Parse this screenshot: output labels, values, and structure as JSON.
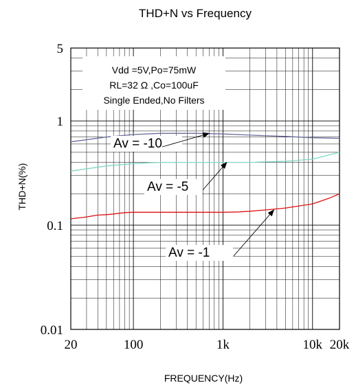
{
  "chart_data": {
    "type": "line",
    "title": "THD+N vs Frequency",
    "xlabel": "FREQUENCY(Hz)",
    "ylabel": "THD+N(%)",
    "x_scale": "log",
    "y_scale": "log",
    "xlim": [
      20,
      20000
    ],
    "ylim": [
      0.01,
      5
    ],
    "x_ticks": [
      {
        "value": 20,
        "label": "20"
      },
      {
        "value": 100,
        "label": "100"
      },
      {
        "value": 1000,
        "label": "1k"
      },
      {
        "value": 10000,
        "label": "10k"
      },
      {
        "value": 20000,
        "label": "20k"
      }
    ],
    "y_ticks": [
      {
        "value": 0.01,
        "label": "0.01"
      },
      {
        "value": 0.1,
        "label": "0.1"
      },
      {
        "value": 1,
        "label": "1"
      },
      {
        "value": 5,
        "label": "5"
      }
    ],
    "grid": true,
    "conditions": [
      "Vdd =5V,Po=75mW",
      "RL=32 Ω ,Co=100uF",
      "Single Ended,No Filters"
    ],
    "series": [
      {
        "name": "Av = -10",
        "color": "#6a6a9e",
        "x": [
          20,
          50,
          100,
          200,
          500,
          1000,
          2000,
          5000,
          10000,
          20000
        ],
        "y": [
          0.63,
          0.7,
          0.74,
          0.76,
          0.76,
          0.75,
          0.73,
          0.71,
          0.69,
          0.68
        ]
      },
      {
        "name": "Av = -5",
        "color": "#7fd8c4",
        "x": [
          20,
          50,
          100,
          200,
          500,
          1000,
          2000,
          5000,
          10000,
          20000
        ],
        "y": [
          0.33,
          0.37,
          0.39,
          0.4,
          0.4,
          0.4,
          0.4,
          0.41,
          0.43,
          0.5
        ]
      },
      {
        "name": "Av = -1",
        "color": "#e01010",
        "x": [
          20,
          30,
          40,
          50,
          60,
          80,
          100,
          200,
          500,
          1000,
          1500,
          2000,
          3000,
          5000,
          10000,
          15000,
          20000
        ],
        "y": [
          0.115,
          0.12,
          0.125,
          0.126,
          0.128,
          0.132,
          0.133,
          0.133,
          0.133,
          0.133,
          0.134,
          0.136,
          0.14,
          0.146,
          0.16,
          0.18,
          0.2
        ]
      }
    ],
    "annotations": [
      {
        "text": "Av = -10",
        "series": "Av = -10",
        "target": [
          700,
          0.76
        ]
      },
      {
        "text": "Av = -5",
        "series": "Av = -5",
        "target": [
          1100,
          0.4
        ]
      },
      {
        "text": "Av = -1",
        "series": "Av = -1",
        "target": [
          3700,
          0.14
        ]
      }
    ]
  }
}
